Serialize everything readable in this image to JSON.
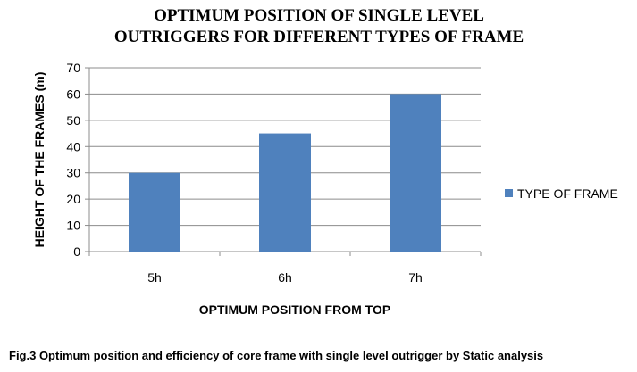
{
  "chart_data": {
    "type": "bar",
    "title_lines": [
      "OPTIMUM POSITION OF SINGLE LEVEL",
      "OUTRIGGERS FOR DIFFERENT TYPES OF FRAME"
    ],
    "categories": [
      "5h",
      "6h",
      "7h"
    ],
    "series": [
      {
        "name": "TYPE OF FRAME",
        "values": [
          30,
          45,
          60
        ]
      }
    ],
    "xlabel": "OPTIMUM POSITION FROM TOP",
    "ylabel": "HEIGHT OF THE FRAMES (m)",
    "ylim": [
      0,
      70
    ],
    "yticks": [
      0,
      10,
      20,
      30,
      40,
      50,
      60,
      70
    ],
    "grid": true,
    "legend_position": "right",
    "colors": {
      "bar": "#4F81BD",
      "grid": "#8c8c8c",
      "axis": "#8c8c8c"
    }
  },
  "caption": "Fig.3 Optimum position and efficiency of core frame with single level outrigger by Static analysis"
}
